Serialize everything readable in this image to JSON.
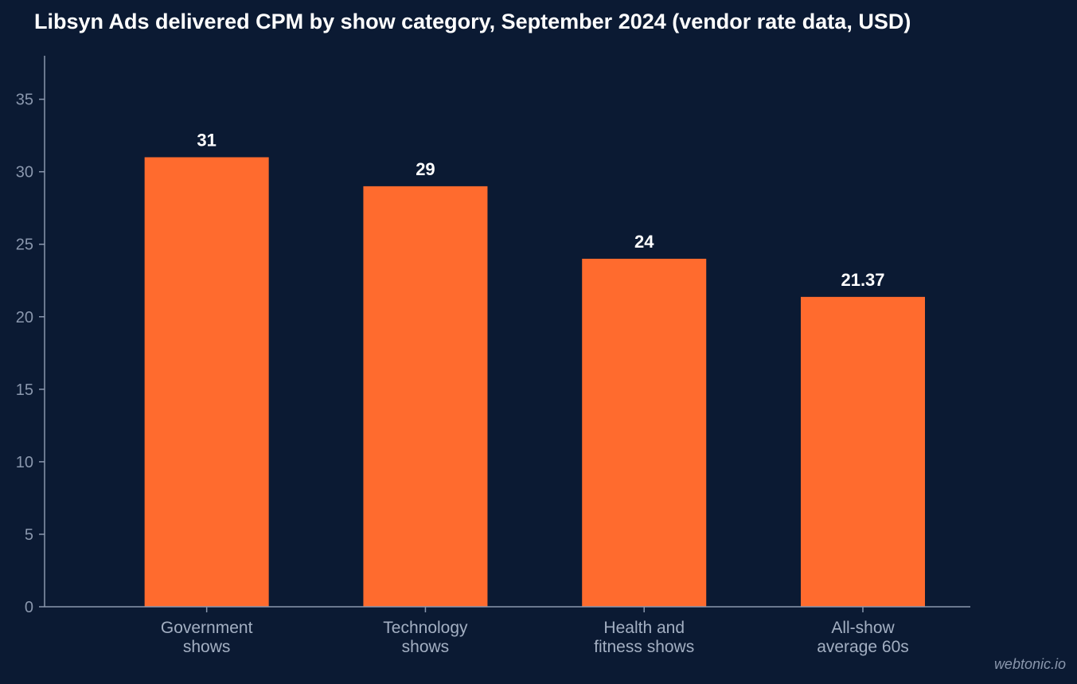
{
  "chart_data": {
    "type": "bar",
    "title": "Libsyn Ads delivered CPM by show category, September 2024 (vendor rate data, USD)",
    "categories": [
      [
        "Government",
        "shows"
      ],
      [
        "Technology",
        "shows"
      ],
      [
        "Health and",
        "fitness shows"
      ],
      [
        "All-show",
        "average 60s"
      ]
    ],
    "values": [
      31,
      29,
      24,
      21.37
    ],
    "value_labels": [
      "31",
      "29",
      "24",
      "21.37"
    ],
    "xlabel": "",
    "ylabel": "",
    "ylim": [
      0,
      38
    ],
    "yticks": [
      0,
      5,
      10,
      15,
      20,
      25,
      30,
      35
    ],
    "grid": false,
    "legend": "none",
    "bar_color": "#ff6b2e",
    "background_color": "#0b1a33",
    "axis_color": "#8a97ad"
  },
  "watermark": "webtonic.io"
}
